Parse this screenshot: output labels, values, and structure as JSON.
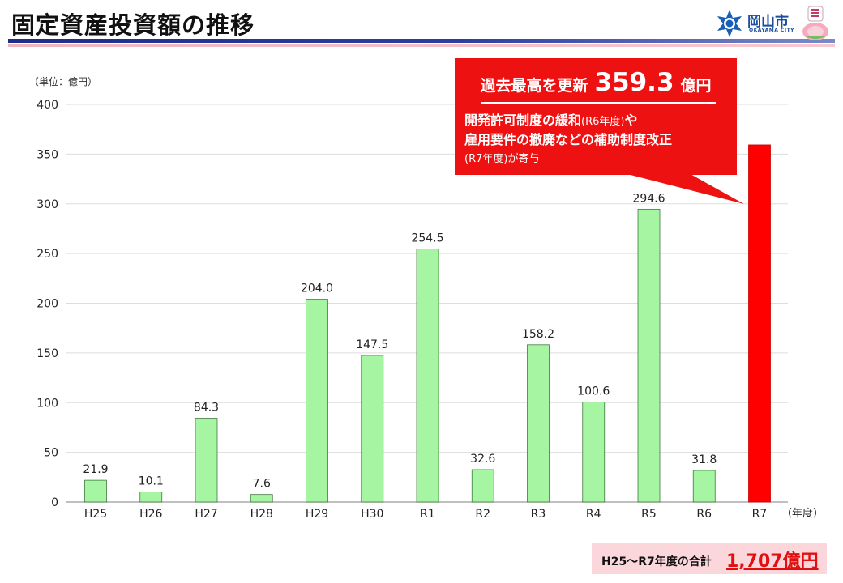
{
  "page": {
    "title": "固定資産投資額の推移",
    "city_name": "岡山市",
    "city_name_en": "OKAYAMA CITY",
    "unit_label": "（単位：億円）"
  },
  "callout": {
    "headline_lead": "過去最高を更新",
    "headline_value": "359.3",
    "headline_unit": "億円",
    "line1_main": "開発許可制度の緩和",
    "line1_small": "(R6年度)",
    "line1_tail": "や",
    "line2": "雇用要件の撤廃などの補助制度改正",
    "line3_small": "(R7年度)",
    "line3_tail": "が寄与"
  },
  "total": {
    "label": "H25～R7年度の合計",
    "value": "1,707億円"
  },
  "colors": {
    "bar_normal": "#a5f5a2",
    "bar_normal_stroke": "#3f7a3d",
    "bar_highlight": "#ff0000",
    "callout_bg": "#ee1111",
    "accent_blue": "#1d2f8a"
  },
  "chart_data": {
    "type": "bar",
    "categories": [
      "H25",
      "H26",
      "H27",
      "H28",
      "H29",
      "H30",
      "R1",
      "R2",
      "R3",
      "R4",
      "R5",
      "R6",
      "R7"
    ],
    "values": [
      21.9,
      10.1,
      84.3,
      7.6,
      204.0,
      147.5,
      254.5,
      32.6,
      158.2,
      100.6,
      294.6,
      31.8,
      359.3
    ],
    "data_labels": [
      "21.9",
      "10.1",
      "84.3",
      "7.6",
      "204.0",
      "147.5",
      "254.5",
      "32.6",
      "158.2",
      "100.6",
      "294.6",
      "31.8",
      ""
    ],
    "highlight_index": 12,
    "y_ticks": [
      0,
      50,
      100,
      150,
      200,
      250,
      300,
      350,
      400
    ],
    "ylim": [
      0,
      400
    ],
    "xlabel": "（年度）",
    "ylabel": "（単位：億円）",
    "grid": true
  }
}
